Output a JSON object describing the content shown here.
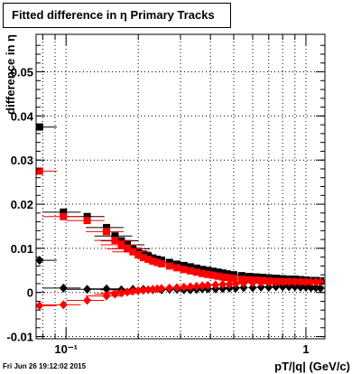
{
  "chart_data": {
    "type": "scatter",
    "title": "Fitted difference in  η  Primary Tracks",
    "xlabel": "pT/|q| (GeV/c)",
    "ylabel": "difference in  η",
    "x_scale": "log",
    "xlim": [
      0.075,
      1.2
    ],
    "ylim": [
      -0.0105,
      0.0585
    ],
    "grid": true,
    "x_ticks": [
      {
        "value": 0.1,
        "label": "10⁻¹"
      },
      {
        "value": 1,
        "label": "1"
      }
    ],
    "y_ticks": [
      {
        "value": -0.01,
        "label": "-0.01"
      },
      {
        "value": 0,
        "label": "0"
      },
      {
        "value": 0.01,
        "label": "0.01"
      },
      {
        "value": 0.02,
        "label": "0.02"
      },
      {
        "value": 0.03,
        "label": "0.03"
      },
      {
        "value": 0.04,
        "label": "0.04"
      },
      {
        "value": 0.05,
        "label": "0.05"
      }
    ],
    "series": [
      {
        "marker": "square",
        "color": "#000000",
        "x": [
          0.0775,
          0.0975,
          0.1225,
          0.1475,
          0.16,
          0.17,
          0.18,
          0.19,
          0.2,
          0.21,
          0.22,
          0.23,
          0.24,
          0.25,
          0.27,
          0.29,
          0.31,
          0.33,
          0.35,
          0.37,
          0.39,
          0.41,
          0.43,
          0.45,
          0.47,
          0.5,
          0.54,
          0.58,
          0.62,
          0.66,
          0.7,
          0.75,
          0.8,
          0.85,
          0.9,
          0.95,
          1.0,
          1.05,
          1.1,
          1.15
        ],
        "y": [
          0.0375,
          0.0182,
          0.0172,
          0.0147,
          0.0128,
          0.0117,
          0.0108,
          0.0099,
          0.0093,
          0.0087,
          0.0083,
          0.0078,
          0.0075,
          0.0073,
          0.0068,
          0.0064,
          0.0061,
          0.0058,
          0.0055,
          0.0052,
          0.005,
          0.0048,
          0.0046,
          0.0044,
          0.0042,
          0.004,
          0.0038,
          0.0036,
          0.0035,
          0.0034,
          0.0033,
          0.0032,
          0.0031,
          0.003,
          0.003,
          0.0029,
          0.0028,
          0.0027,
          0.0027,
          0.0026
        ]
      },
      {
        "marker": "square",
        "color": "#ff0000",
        "x": [
          0.0775,
          0.0975,
          0.1225,
          0.1475,
          0.16,
          0.17,
          0.18,
          0.19,
          0.2,
          0.21,
          0.22,
          0.23,
          0.24,
          0.25,
          0.27,
          0.29,
          0.31,
          0.33,
          0.35,
          0.37,
          0.39,
          0.41,
          0.43,
          0.45,
          0.47,
          0.5,
          0.54,
          0.58,
          0.62,
          0.66,
          0.7,
          0.75,
          0.8,
          0.85,
          0.9,
          0.95,
          1.0
        ],
        "y": [
          0.0275,
          0.0172,
          0.0163,
          0.0138,
          0.0118,
          0.0108,
          0.0099,
          0.0092,
          0.0085,
          0.0079,
          0.0075,
          0.0071,
          0.0068,
          0.0065,
          0.006,
          0.0056,
          0.0052,
          0.0049,
          0.0046,
          0.0043,
          0.0041,
          0.0039,
          0.0037,
          0.0035,
          0.0034,
          0.0032,
          0.003,
          0.0029,
          0.0028,
          0.0027,
          0.0026,
          0.0025,
          0.0024,
          0.0024,
          0.0023,
          0.0023,
          0.0022
        ]
      },
      {
        "marker": "diamond",
        "color": "#000000",
        "x": [
          0.0775,
          0.0975,
          0.1225,
          0.1475,
          0.17,
          0.19,
          0.21,
          0.23,
          0.25,
          0.27,
          0.29,
          0.31,
          0.33,
          0.35,
          0.37,
          0.39,
          0.42,
          0.45,
          0.48,
          0.51,
          0.55,
          0.6,
          0.65,
          0.7,
          0.75,
          0.8,
          0.85,
          0.9,
          0.95,
          1.0,
          1.05,
          1.1,
          1.15
        ],
        "y": [
          0.0073,
          0.001,
          0.0007,
          0.0008,
          0.0006,
          0.0007,
          0.0007,
          0.0006,
          0.0006,
          0.0007,
          0.0007,
          0.0006,
          0.0006,
          0.0007,
          0.0008,
          0.0008,
          0.0008,
          0.0009,
          0.001,
          0.001,
          0.0011,
          0.0011,
          0.0012,
          0.0012,
          0.0013,
          0.0013,
          0.0013,
          0.0013,
          0.0012,
          0.0012,
          0.0011,
          0.0011,
          0.001
        ]
      },
      {
        "marker": "diamond",
        "color": "#ff0000",
        "x": [
          0.0775,
          0.0975,
          0.1225,
          0.1475,
          0.16,
          0.17,
          0.18,
          0.19,
          0.2,
          0.21,
          0.22,
          0.23,
          0.24,
          0.25,
          0.27,
          0.29,
          0.31,
          0.33,
          0.35,
          0.37,
          0.39,
          0.42,
          0.45,
          0.48,
          0.51,
          0.55,
          0.6,
          0.65,
          0.7,
          0.75,
          0.8,
          0.85,
          0.9,
          0.95,
          1.0,
          1.05,
          1.1,
          1.15
        ],
        "y": [
          -0.003,
          -0.0028,
          -0.0018,
          -0.0008,
          -0.0004,
          -0.0001,
          0.0001,
          0.0003,
          0.0004,
          0.0005,
          0.0006,
          0.0007,
          0.0008,
          0.0009,
          0.001,
          0.0011,
          0.0012,
          0.0013,
          0.0014,
          0.0015,
          0.0016,
          0.0017,
          0.0018,
          0.0019,
          0.002,
          0.0021,
          0.0022,
          0.0022,
          0.0023,
          0.0023,
          0.0024,
          0.0024,
          0.0024,
          0.0024,
          0.0024,
          0.0024,
          0.0024,
          0.0024
        ]
      }
    ]
  },
  "footer": "Fri Jun 26 19:12:02 2015"
}
